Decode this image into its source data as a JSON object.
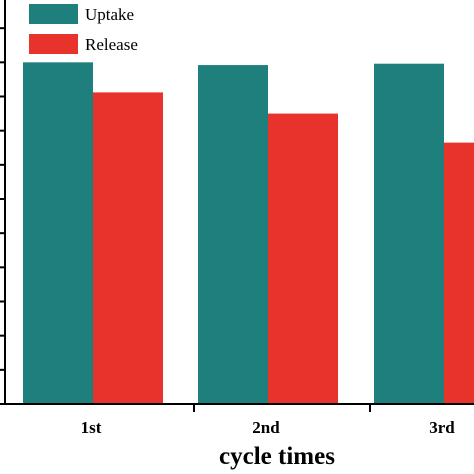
{
  "chart_data": {
    "type": "bar",
    "categories": [
      "1st",
      "2nd",
      "3rd"
    ],
    "series": [
      {
        "name": "Uptake",
        "values": [
          100.0,
          99.2,
          99.6
        ],
        "color": "#1e7f7c"
      },
      {
        "name": "Release",
        "values": [
          91.2,
          85.0,
          76.5
        ],
        "color": "#e8332c"
      }
    ],
    "xlabel": "cycle times",
    "ylabel": "",
    "ylim": [
      0,
      120
    ],
    "grid": false,
    "legend": "top-left"
  }
}
